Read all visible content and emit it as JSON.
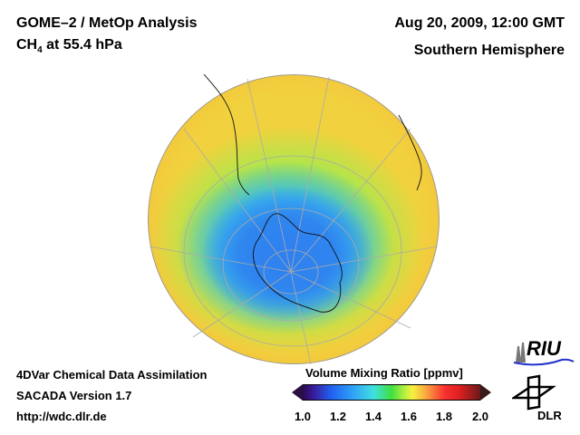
{
  "header": {
    "title": "GOME–2 / MetOp Analysis",
    "species": "CH",
    "species_sub": "4",
    "species_rest": " at 55.4 hPa",
    "datetime": "Aug 20, 2009, 12:00 GMT",
    "region": "Southern Hemisphere"
  },
  "footer": {
    "line1": "4DVar Chemical Data Assimilation",
    "line2": "SACADA Version 1.7",
    "line3": "http://wdc.dlr.de"
  },
  "colorbar": {
    "title": "Volume Mixing Ratio [ppmv]",
    "ticks": [
      "1.0",
      "1.2",
      "1.4",
      "1.6",
      "1.8",
      "2.0"
    ],
    "range": [
      1.0,
      2.0
    ],
    "colors": {
      "low": "#2a0a50",
      "mid": "#40e040",
      "high": "#6a1a1a"
    }
  },
  "logos": {
    "riu": "RIU",
    "dlr": "DLR"
  }
}
